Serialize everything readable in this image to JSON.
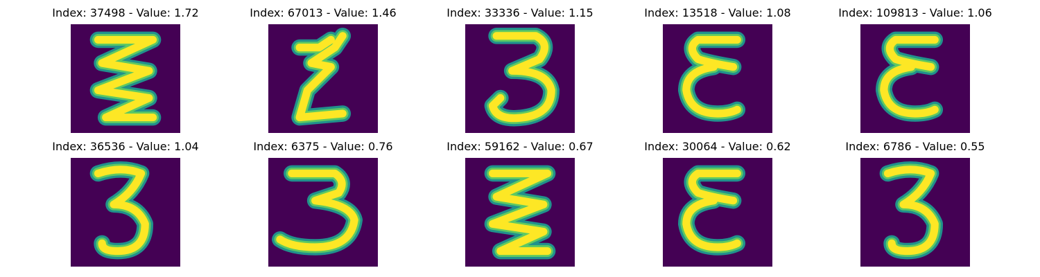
{
  "colors": {
    "background": "#ffffff",
    "image_low": "#440154",
    "image_edge": "#21918c",
    "image_mid": "#5ec962",
    "image_high": "#fde725"
  },
  "panels": [
    {
      "title": "Index: 37498 - Value: 1.72",
      "glyph": "zigzag-3"
    },
    {
      "title": "Index: 67013 - Value: 1.46",
      "glyph": "zigzag-thin-3"
    },
    {
      "title": "Index: 33336 - Value: 1.15",
      "glyph": "round-3"
    },
    {
      "title": "Index: 13518 - Value: 1.08",
      "glyph": "reversed-3"
    },
    {
      "title": "Index: 109813 - Value: 1.06",
      "glyph": "reversed-3"
    },
    {
      "title": "Index: 36536 - Value: 1.04",
      "glyph": "thin-3"
    },
    {
      "title": "Index: 6375 - Value: 0.76",
      "glyph": "wide-3"
    },
    {
      "title": "Index: 59162 - Value: 0.67",
      "glyph": "zigzag-3"
    },
    {
      "title": "Index: 30064 - Value: 0.62",
      "glyph": "reversed-3"
    },
    {
      "title": "Index: 6786 - Value: 0.55",
      "glyph": "thin-3"
    }
  ]
}
